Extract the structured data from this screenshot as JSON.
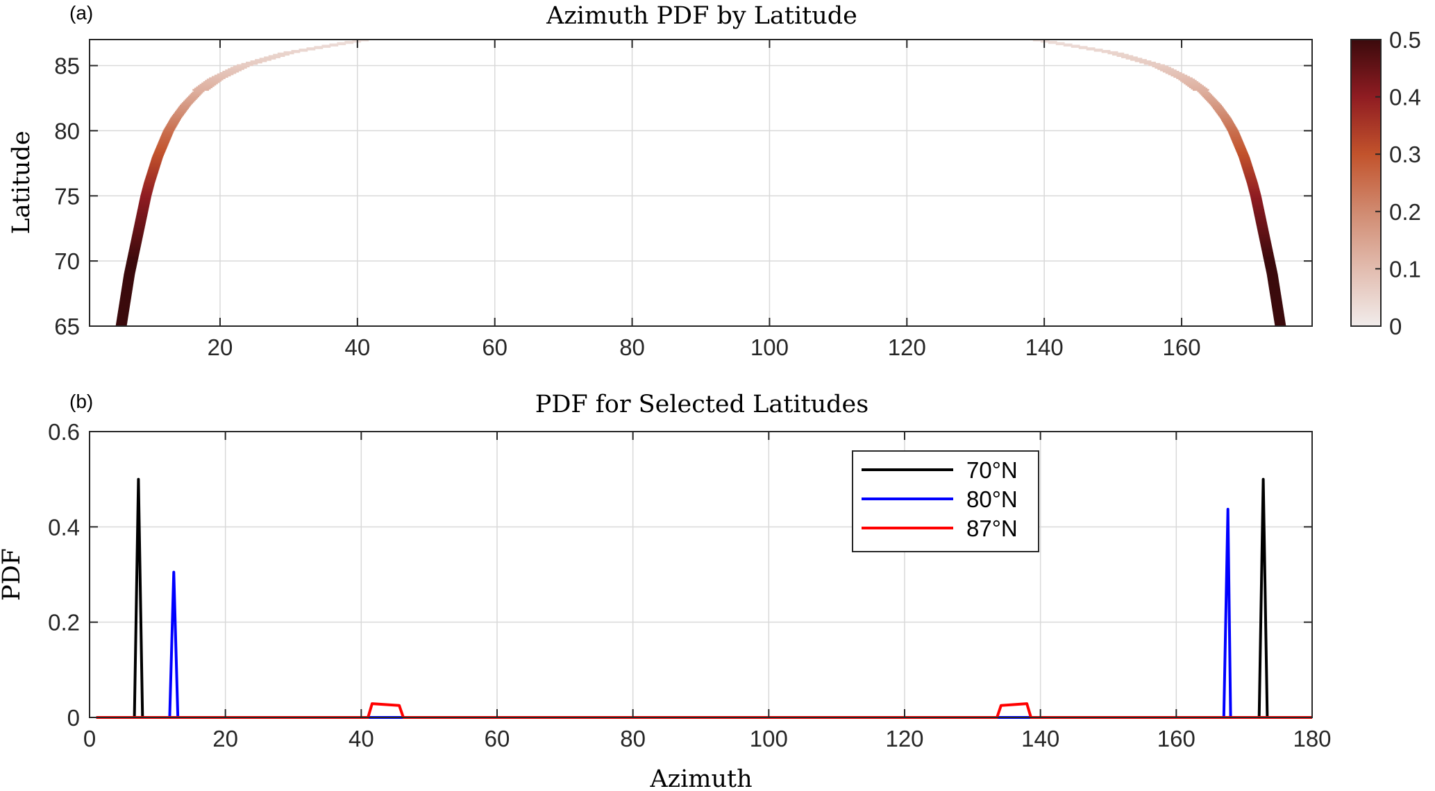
{
  "chart_data": [
    {
      "panel_label": "(a)",
      "type": "heatmap",
      "title": "Azimuth PDF by Latitude",
      "xlabel": "",
      "ylabel": "Latitude",
      "xlim": [
        1,
        179
      ],
      "ylim": [
        65,
        87
      ],
      "xticks": [
        20,
        40,
        60,
        80,
        100,
        120,
        140,
        160
      ],
      "yticks": [
        65,
        70,
        75,
        80,
        85
      ],
      "grid": true,
      "colorbar": {
        "range": [
          0,
          0.5
        ],
        "ticks": [
          "0",
          "0.1",
          "0.2",
          "0.3",
          "0.4",
          "0.5"
        ],
        "colors": [
          "#f1eceb",
          "#e2bcaf",
          "#d08a70",
          "#c2532c",
          "#8f1c22",
          "#3b0a0c"
        ]
      },
      "ridge": {
        "description_points_lat": [
          65,
          66,
          67,
          68,
          69,
          70,
          71,
          72,
          73,
          74,
          75,
          76,
          77,
          78,
          79,
          80,
          81,
          82,
          83,
          84,
          85,
          86,
          87
        ],
        "left_azimuth": [
          5.6,
          5.9,
          6.2,
          6.5,
          6.8,
          7.2,
          7.6,
          8.0,
          8.4,
          8.8,
          9.2,
          9.7,
          10.3,
          10.9,
          11.7,
          12.5,
          13.6,
          15.0,
          16.8,
          19.4,
          23.3,
          29.9,
          41.0
        ],
        "right_azimuth": [
          174.4,
          174.1,
          173.8,
          173.5,
          173.2,
          172.8,
          172.4,
          172.0,
          171.6,
          171.2,
          170.8,
          170.3,
          169.7,
          169.1,
          168.3,
          167.5,
          166.4,
          165.0,
          163.2,
          160.6,
          156.7,
          150.1,
          139.0
        ],
        "pdf": [
          0.5,
          0.5,
          0.5,
          0.5,
          0.5,
          0.5,
          0.48,
          0.46,
          0.44,
          0.42,
          0.4,
          0.37,
          0.34,
          0.31,
          0.28,
          0.25,
          0.21,
          0.17,
          0.13,
          0.1,
          0.07,
          0.05,
          0.03
        ]
      }
    },
    {
      "panel_label": "(b)",
      "type": "line",
      "title": "PDF for Selected Latitudes",
      "xlabel": "Azimuth",
      "ylabel": "PDF",
      "xlim": [
        0,
        180
      ],
      "ylim": [
        0,
        0.6
      ],
      "xticks": [
        0,
        20,
        40,
        60,
        80,
        100,
        120,
        140,
        160,
        180
      ],
      "yticks": [
        0,
        0.2,
        0.4,
        0.6
      ],
      "ytick_labels": [
        "0",
        "0.2",
        "0.4",
        "0.6"
      ],
      "grid": true,
      "legend_position": "top-right",
      "series": [
        {
          "name": "70°N",
          "color": "#000000",
          "x": [
            1,
            6.6,
            7.2,
            7.8,
            172.2,
            172.8,
            173.4,
            180
          ],
          "y": [
            0,
            0,
            0.5,
            0,
            0,
            0.5,
            0,
            0
          ]
        },
        {
          "name": "80°N",
          "color": "#0000ff",
          "x": [
            1,
            11.8,
            12.4,
            13.0,
            167.0,
            167.6,
            168.0,
            180
          ],
          "y": [
            0,
            0,
            0.305,
            0,
            0,
            0.437,
            0,
            0
          ]
        },
        {
          "name": "87°N",
          "color": "#ff0000",
          "x": [
            1,
            41.0,
            41.6,
            45.6,
            46.2,
            133.6,
            134.2,
            138.0,
            138.6,
            180
          ],
          "y": [
            0,
            0,
            0.029,
            0.025,
            0,
            0,
            0.025,
            0.029,
            0,
            0
          ]
        }
      ]
    }
  ]
}
